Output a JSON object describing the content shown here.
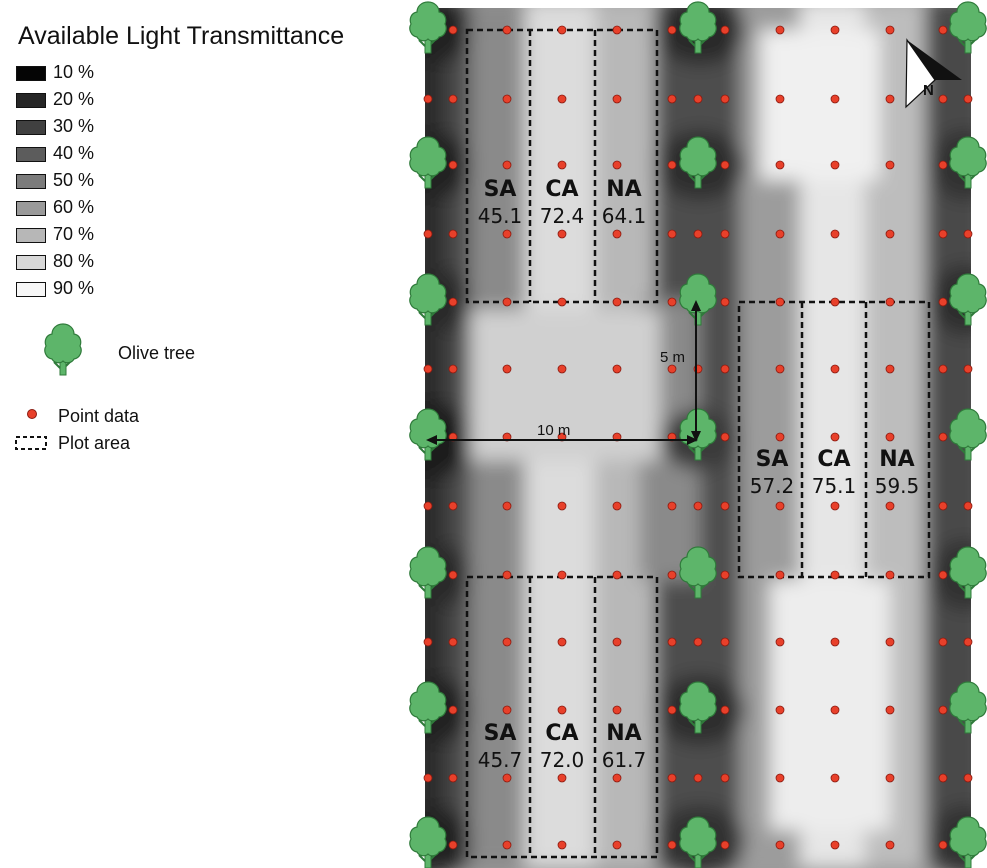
{
  "legend": {
    "title": "Available Light Transmittance",
    "classes": [
      {
        "label": "10 %",
        "color": "#050505"
      },
      {
        "label": "20 %",
        "color": "#262626"
      },
      {
        "label": "30 %",
        "color": "#404040"
      },
      {
        "label": "40 %",
        "color": "#5c5c5c"
      },
      {
        "label": "50 %",
        "color": "#7b7b7b"
      },
      {
        "label": "60 %",
        "color": "#9a9a9a"
      },
      {
        "label": "70 %",
        "color": "#b7b7b7"
      },
      {
        "label": "80 %",
        "color": "#d8d8d8"
      },
      {
        "label": "90 %",
        "color": "#f7f7f7"
      }
    ],
    "olive_tree_label": "Olive tree",
    "point_data_label": "Point data",
    "plot_area_label": "Plot area"
  },
  "colors": {
    "tree_fill": "#5db56a",
    "tree_outline": "#2f7a3a",
    "point_fill": "#e8402a",
    "point_outline": "#8a1a10"
  },
  "north_label": "N",
  "scale": {
    "vertical": "5 m",
    "horizontal": "10 m"
  },
  "plots": [
    {
      "group": "top",
      "code": "SA",
      "value": "45.1"
    },
    {
      "group": "top",
      "code": "CA",
      "value": "72.4"
    },
    {
      "group": "top",
      "code": "NA",
      "value": "64.1"
    },
    {
      "group": "middle",
      "code": "SA",
      "value": "57.2"
    },
    {
      "group": "middle",
      "code": "CA",
      "value": "75.1"
    },
    {
      "group": "middle",
      "code": "NA",
      "value": "59.5"
    },
    {
      "group": "bottom",
      "code": "SA",
      "value": "45.7"
    },
    {
      "group": "bottom",
      "code": "CA",
      "value": "72.0"
    },
    {
      "group": "bottom",
      "code": "NA",
      "value": "61.7"
    }
  ]
}
